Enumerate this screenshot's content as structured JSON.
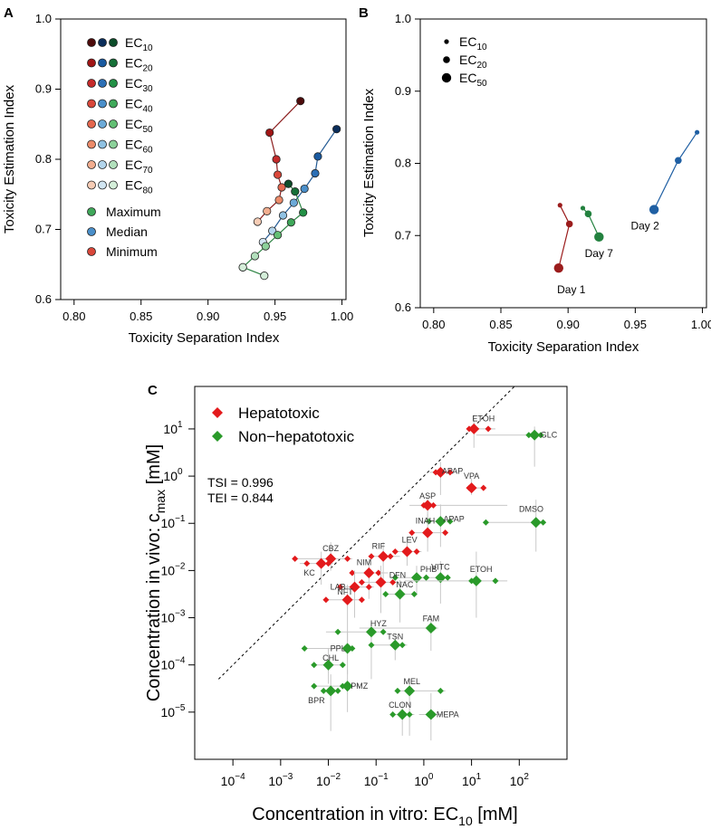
{
  "chart_data": [
    {
      "panel": "A",
      "type": "scatter",
      "xlabel": "Toxicity Separation Index",
      "ylabel": "Toxicity Estimation Index",
      "xlim": [
        0.79,
        1.003
      ],
      "ylim": [
        0.6,
        1.0
      ],
      "xticks": [
        "0.80",
        "0.85",
        "0.90",
        "0.95",
        "1.00"
      ],
      "yticks": [
        "0.6",
        "0.7",
        "0.8",
        "0.9",
        "1.0"
      ],
      "legend_ec": [
        {
          "base": "EC",
          "sub": "10",
          "colors": [
            "#4d0b0b",
            "#0b2e5a",
            "#0d4d2a"
          ]
        },
        {
          "base": "EC",
          "sub": "20",
          "colors": [
            "#a01515",
            "#1a5aa0",
            "#167038"
          ]
        },
        {
          "base": "EC",
          "sub": "30",
          "colors": [
            "#c52a2a",
            "#2c6fb5",
            "#239046"
          ]
        },
        {
          "base": "EC",
          "sub": "40",
          "colors": [
            "#d9473a",
            "#4a8fca",
            "#3fa85a"
          ]
        },
        {
          "base": "EC",
          "sub": "50",
          "colors": [
            "#e4674e",
            "#6caad8",
            "#63bf74"
          ]
        },
        {
          "base": "EC",
          "sub": "60",
          "colors": [
            "#ec8b6a",
            "#90c2e3",
            "#8cd19a"
          ]
        },
        {
          "base": "EC",
          "sub": "70",
          "colors": [
            "#f2ad8f",
            "#b3d5ec",
            "#b2e0bc"
          ]
        },
        {
          "base": "EC",
          "sub": "80",
          "colors": [
            "#f6ccb5",
            "#d2e6f3",
            "#d4eed9"
          ]
        }
      ],
      "legend_stat": [
        {
          "label": "Maximum",
          "color": "#3fa85a"
        },
        {
          "label": "Median",
          "color": "#4a8fca"
        },
        {
          "label": "Minimum",
          "color": "#d9473a"
        }
      ],
      "series": [
        {
          "name": "Minimum",
          "line": "#8b1d1d",
          "points": [
            [
              0.969,
              0.883
            ],
            [
              0.946,
              0.838
            ],
            [
              0.951,
              0.8
            ],
            [
              0.952,
              0.778
            ],
            [
              0.955,
              0.76
            ],
            [
              0.953,
              0.742
            ],
            [
              0.944,
              0.726
            ],
            [
              0.937,
              0.711
            ]
          ]
        },
        {
          "name": "Median",
          "line": "#245b94",
          "points": [
            [
              0.996,
              0.843
            ],
            [
              0.982,
              0.804
            ],
            [
              0.98,
              0.78
            ],
            [
              0.972,
              0.758
            ],
            [
              0.964,
              0.738
            ],
            [
              0.956,
              0.72
            ],
            [
              0.948,
              0.698
            ],
            [
              0.941,
              0.682
            ]
          ]
        },
        {
          "name": "Maximum",
          "line": "#2e8444",
          "points": [
            [
              0.96,
              0.765
            ],
            [
              0.965,
              0.754
            ],
            [
              0.971,
              0.724
            ],
            [
              0.962,
              0.71
            ],
            [
              0.952,
              0.692
            ],
            [
              0.943,
              0.676
            ],
            [
              0.935,
              0.662
            ],
            [
              0.926,
              0.646
            ]
          ]
        },
        {
          "name": "Maximum-end",
          "line": "#2e8444",
          "points": [
            [
              0.926,
              0.646
            ],
            [
              0.942,
              0.634
            ]
          ]
        }
      ]
    },
    {
      "panel": "B",
      "type": "scatter",
      "xlabel": "Toxicity Separation Index",
      "ylabel": "Toxicity Estimation Index",
      "xlim": [
        0.79,
        1.003
      ],
      "ylim": [
        0.6,
        1.0
      ],
      "xticks": [
        "0.80",
        "0.85",
        "0.90",
        "0.95",
        "1.00"
      ],
      "yticks": [
        "0.6",
        "0.7",
        "0.8",
        "0.9",
        "1.0"
      ],
      "legend": [
        {
          "base": "EC",
          "sub": "10",
          "size": "small"
        },
        {
          "base": "EC",
          "sub": "20",
          "size": "medium"
        },
        {
          "base": "EC",
          "sub": "50",
          "size": "large"
        }
      ],
      "series": [
        {
          "name": "Day 1",
          "color": "#9b1c1c",
          "points": [
            [
              0.894,
              0.742
            ],
            [
              0.901,
              0.716
            ],
            [
              0.893,
              0.655
            ]
          ]
        },
        {
          "name": "Day 7",
          "color": "#23813f",
          "points": [
            [
              0.911,
              0.738
            ],
            [
              0.915,
              0.73
            ],
            [
              0.923,
              0.698
            ]
          ]
        },
        {
          "name": "Day 2",
          "color": "#1f5fa3",
          "points": [
            [
              0.996,
              0.843
            ],
            [
              0.982,
              0.804
            ],
            [
              0.964,
              0.736
            ]
          ]
        }
      ],
      "labels": [
        "Day 1",
        "Day 7",
        "Day 2"
      ]
    },
    {
      "panel": "C",
      "type": "scatter",
      "xscale": "log",
      "yscale": "log",
      "xlabel_pre": "Concentration in vitro: EC",
      "xlabel_sub": "10",
      "xlabel_post": " [mM]",
      "ylabel_pre": "Concentration in vivo: c",
      "ylabel_sub": "max",
      "ylabel_post": " [mM]",
      "xlim_log10": [
        -4.8,
        3.0
      ],
      "ylim_log10": [
        -6.0,
        1.9
      ],
      "xtick_exps": [
        "-4",
        "-3",
        "-2",
        "-1",
        "0",
        "1",
        "2"
      ],
      "ytick_exps": [
        "-5",
        "-4",
        "-3",
        "-2",
        "-1",
        "0",
        "1"
      ],
      "legend": [
        {
          "label": "Hepatotoxic",
          "color": "#e31a1c"
        },
        {
          "label": "Non−hepatotoxic",
          "color": "#2a9a2a"
        }
      ],
      "stats": {
        "tsi": "TSI =  0.996",
        "tei": "TEI =  0.844"
      },
      "compounds": [
        {
          "name": "ETOH",
          "hep": true,
          "x": 1.05,
          "y": 1.0,
          "xr": [
            0.95,
            1.5
          ],
          "yr": [
            0.6,
            1.3
          ],
          "xs": [
            0.95,
            1.35
          ],
          "lx": 0.2,
          "ly": 0.22
        },
        {
          "name": "GLC",
          "hep": false,
          "x": 2.32,
          "y": 0.87,
          "xr": [
            1.1,
            2.45
          ],
          "yr": [
            0.2,
            1.05
          ],
          "xs": [
            2.2,
            2.45
          ],
          "lx": 0.3,
          "ly": 0.0
        },
        {
          "name": "APAP",
          "hep": true,
          "x": 0.35,
          "y": 0.08,
          "xr": [
            0.12,
            0.6
          ],
          "yr": [
            -0.4,
            0.3
          ],
          "xs": [
            0.25,
            0.55
          ],
          "lx": 0.25,
          "ly": 0.03
        },
        {
          "name": "VPA",
          "hep": true,
          "x": 1.0,
          "y": -0.25,
          "xr": [
            0.95,
            1.3
          ],
          "yr": [
            -0.4,
            -0.05
          ],
          "xs": [
            0.95,
            1.25
          ],
          "lx": 0.0,
          "ly": 0.25
        },
        {
          "name": "ASP",
          "hep": true,
          "x": 0.08,
          "y": -0.62,
          "xr": [
            -0.3,
            1.75
          ],
          "yr": [
            -1.0,
            -0.4
          ],
          "xs": [
            0.0,
            0.2
          ],
          "lx": 0.0,
          "ly": 0.2
        },
        {
          "name": "APAP",
          "hep": false,
          "x": 0.35,
          "y": -0.96,
          "xr": [
            0.0,
            0.6
          ],
          "yr": [
            -1.5,
            -0.6
          ],
          "xs": [
            0.1,
            0.55
          ],
          "lx": 0.28,
          "ly": 0.05
        },
        {
          "name": "DMSO",
          "hep": false,
          "x": 2.35,
          "y": -0.98,
          "xr": [
            1.3,
            2.5
          ],
          "yr": [
            -1.6,
            -0.5
          ],
          "xs": [
            1.3,
            2.5
          ],
          "lx": -0.1,
          "ly": 0.28
        },
        {
          "name": "INAH",
          "hep": true,
          "x": 0.08,
          "y": -1.2,
          "xr": [
            -0.3,
            0.5
          ],
          "yr": [
            -1.6,
            -0.8
          ],
          "xs": [
            -0.25,
            0.45
          ],
          "lx": -0.05,
          "ly": 0.25
        },
        {
          "name": "LEV",
          "hep": true,
          "x": -0.35,
          "y": -1.6,
          "xr": [
            -0.65,
            -0.05
          ],
          "yr": [
            -1.9,
            -1.3
          ],
          "xs": [
            -0.6,
            -0.15
          ],
          "lx": 0.05,
          "ly": 0.25
        },
        {
          "name": "RIF",
          "hep": true,
          "x": -0.85,
          "y": -1.7,
          "xr": [
            -1.1,
            -0.5
          ],
          "yr": [
            -2.2,
            -1.4
          ],
          "xs": [
            -1.1,
            -0.7
          ],
          "lx": -0.1,
          "ly": 0.22
        },
        {
          "name": "CBZ",
          "hep": true,
          "x": -1.95,
          "y": -1.75,
          "xr": [
            -2.7,
            -1.5
          ],
          "yr": [
            -2.0,
            -1.4
          ],
          "xs": [
            -2.7,
            -1.6
          ],
          "lx": 0.0,
          "ly": 0.22
        },
        {
          "name": "KC",
          "hep": true,
          "x": -2.15,
          "y": -1.85,
          "xr": [
            -2.6,
            -1.9
          ],
          "yr": [
            -2.3,
            -1.6
          ],
          "xs": [
            -2.45,
            -2.0
          ],
          "lx": -0.25,
          "ly": -0.2
        },
        {
          "name": "PHB",
          "hep": false,
          "x": -0.15,
          "y": -2.15,
          "xr": [
            -0.7,
            0.1
          ],
          "yr": [
            -2.5,
            -1.9
          ],
          "xs": [
            -0.6,
            0.05
          ],
          "lx": 0.25,
          "ly": 0.18
        },
        {
          "name": "NIM",
          "hep": true,
          "x": -1.15,
          "y": -2.05,
          "xr": [
            -1.55,
            -0.75
          ],
          "yr": [
            -2.6,
            -1.75
          ],
          "xs": [
            -1.5,
            -0.95
          ],
          "lx": -0.1,
          "ly": 0.22
        },
        {
          "name": "VITC",
          "hep": false,
          "x": 0.35,
          "y": -2.15,
          "xr": [
            0.0,
            0.55
          ],
          "yr": [
            -2.7,
            -1.8
          ],
          "xs": [
            0.05,
            0.5
          ],
          "lx": 0.0,
          "ly": 0.22
        },
        {
          "name": "ETOH",
          "hep": false,
          "x": 1.1,
          "y": -2.22,
          "xr": [
            -0.4,
            1.75
          ],
          "yr": [
            -3.0,
            -1.6
          ],
          "xs": [
            1.0,
            1.5
          ],
          "lx": 0.1,
          "ly": 0.25
        },
        {
          "name": "DFN",
          "hep": true,
          "x": -0.9,
          "y": -2.25,
          "xr": [
            -1.3,
            -0.4
          ],
          "yr": [
            -2.9,
            -1.9
          ],
          "xs": [
            -1.3,
            -0.65
          ],
          "lx": 0.35,
          "ly": 0.15
        },
        {
          "name": "LAB",
          "hep": true,
          "x": -1.45,
          "y": -2.35,
          "xr": [
            -1.8,
            -1.05
          ],
          "yr": [
            -3.0,
            -2.0
          ],
          "xs": [
            -1.75,
            -1.15
          ],
          "lx": -0.35,
          "ly": 0.0
        },
        {
          "name": "NAC",
          "hep": false,
          "x": -0.5,
          "y": -2.5,
          "xr": [
            -0.85,
            -0.15
          ],
          "yr": [
            -3.1,
            -2.2
          ],
          "xs": [
            -0.8,
            -0.2
          ],
          "lx": 0.1,
          "ly": 0.2
        },
        {
          "name": "NFT",
          "hep": true,
          "x": -1.6,
          "y": -2.62,
          "xr": [
            -2.1,
            -1.25
          ],
          "yr": [
            -3.5,
            -2.3
          ],
          "xs": [
            -2.05,
            -1.3
          ],
          "lx": -0.05,
          "ly": 0.17
        },
        {
          "name": "FAM",
          "hep": false,
          "x": 0.15,
          "y": -3.22,
          "xr": [
            -1.35,
            0.3
          ],
          "yr": [
            -3.7,
            -2.95
          ],
          "xs": [
            0.15,
            0.2
          ],
          "lx": 0.0,
          "ly": 0.2
        },
        {
          "name": "HYZ",
          "hep": false,
          "x": -1.1,
          "y": -3.3,
          "xr": [
            -2.05,
            -0.85
          ],
          "yr": [
            -4.3,
            -3.1
          ],
          "xs": [
            -1.8,
            -0.85
          ],
          "lx": 0.15,
          "ly": 0.18
        },
        {
          "name": "TSN",
          "hep": false,
          "x": -0.6,
          "y": -3.58,
          "xr": [
            -1.15,
            -0.35
          ],
          "yr": [
            -3.9,
            -3.35
          ],
          "xs": [
            -1.1,
            -0.45
          ],
          "lx": 0.0,
          "ly": 0.18
        },
        {
          "name": "PPL",
          "hep": false,
          "x": -1.6,
          "y": -3.65,
          "xr": [
            -2.55,
            -1.45
          ],
          "yr": [
            -4.2,
            -3.3
          ],
          "xs": [
            -2.5,
            -1.5
          ],
          "lx": -0.2,
          "ly": 0.0
        },
        {
          "name": "CHL",
          "hep": false,
          "x": -2.0,
          "y": -4.0,
          "xr": [
            -2.3,
            -1.65
          ],
          "yr": [
            -4.4,
            -3.65
          ],
          "xs": [
            -2.3,
            -1.7
          ],
          "lx": 0.05,
          "ly": 0.15
        },
        {
          "name": "MEL",
          "hep": false,
          "x": -0.3,
          "y": -4.55,
          "xr": [
            -0.55,
            0.45
          ],
          "yr": [
            -5.5,
            -4.3
          ],
          "xs": [
            -0.55,
            0.35
          ],
          "lx": 0.05,
          "ly": 0.2
        },
        {
          "name": "PMZ",
          "hep": false,
          "x": -1.6,
          "y": -4.45,
          "xr": [
            -2.3,
            -1.35
          ],
          "yr": [
            -5.0,
            -4.1
          ],
          "xs": [
            -2.3,
            -1.7
          ],
          "lx": 0.25,
          "ly": 0.0
        },
        {
          "name": "BPR",
          "hep": false,
          "x": -1.95,
          "y": -4.55,
          "xr": [
            -2.15,
            -1.75
          ],
          "yr": [
            -5.4,
            -4.2
          ],
          "xs": [
            -2.1,
            -1.8
          ],
          "lx": -0.3,
          "ly": -0.2
        },
        {
          "name": "CLON",
          "hep": false,
          "x": -0.45,
          "y": -5.05,
          "xr": [
            -0.65,
            -0.2
          ],
          "yr": [
            -5.5,
            -4.8
          ],
          "xs": [
            -0.65,
            -0.3
          ],
          "lx": -0.05,
          "ly": 0.2
        },
        {
          "name": "MEPA",
          "hep": false,
          "x": 0.15,
          "y": -5.05,
          "xr": [
            -0.1,
            0.4
          ],
          "yr": [
            -5.6,
            -4.6
          ],
          "xs": [
            0.1,
            0.2
          ],
          "lx": 0.35,
          "ly": 0.0
        }
      ]
    }
  ]
}
